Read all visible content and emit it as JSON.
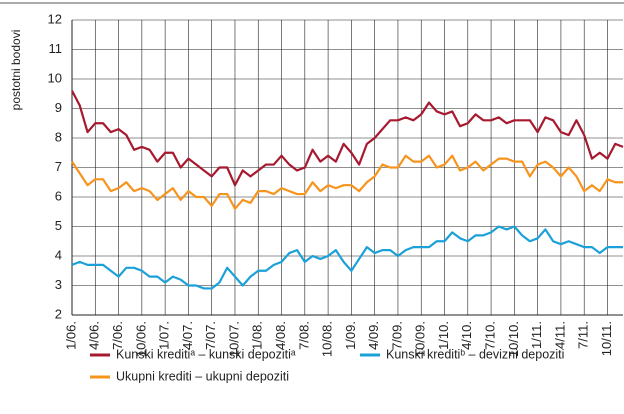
{
  "chart_data": {
    "type": "line",
    "y_axis_label": "postotni bodovi",
    "categories": [
      "1/06.",
      null,
      null,
      "4/06.",
      null,
      null,
      "7/06.",
      null,
      null,
      "10/06.",
      null,
      null,
      "1/07.",
      null,
      null,
      "4/07.",
      null,
      null,
      "7/07.",
      null,
      null,
      "10/07.",
      null,
      null,
      "1/08.",
      null,
      null,
      "4/08.",
      null,
      null,
      "7/08.",
      null,
      null,
      "10/08.",
      null,
      null,
      "1/09.",
      null,
      null,
      "4/09.",
      null,
      null,
      "7/09.",
      null,
      null,
      "10/09.",
      null,
      null,
      "1/10.",
      null,
      null,
      "4/10.",
      null,
      null,
      "7/10.",
      null,
      null,
      "10/10.",
      null,
      null,
      "1/11.",
      null,
      null,
      "4/11.",
      null,
      null,
      "7/11.",
      null,
      null,
      "10/11.",
      null,
      null
    ],
    "series": [
      {
        "name": "Kunski kreditiᵃ – kunski depozitiᵃ",
        "color": "#a6192e",
        "values": [
          9.6,
          9.1,
          8.2,
          8.5,
          8.5,
          8.2,
          8.3,
          8.1,
          7.6,
          7.7,
          7.6,
          7.2,
          7.5,
          7.5,
          7.0,
          7.3,
          7.1,
          6.9,
          6.7,
          7.0,
          7.0,
          6.4,
          6.9,
          6.7,
          6.9,
          7.1,
          7.1,
          7.4,
          7.1,
          6.9,
          7.0,
          7.6,
          7.2,
          7.4,
          7.2,
          7.8,
          7.5,
          7.1,
          7.8,
          8.0,
          8.3,
          8.6,
          8.6,
          8.7,
          8.6,
          8.8,
          9.2,
          8.9,
          8.8,
          8.9,
          8.4,
          8.5,
          8.8,
          8.6,
          8.6,
          8.7,
          8.5,
          8.6,
          8.6,
          8.6,
          8.2,
          8.7,
          8.6,
          8.2,
          8.1,
          8.6,
          8.1,
          7.3,
          7.5,
          7.3,
          7.8,
          7.7
        ]
      },
      {
        "name": "Kunski kreditiᵇ – devizni depoziti",
        "color": "#1ba1d9",
        "values": [
          3.7,
          3.8,
          3.7,
          3.7,
          3.7,
          3.5,
          3.3,
          3.6,
          3.6,
          3.5,
          3.3,
          3.3,
          3.1,
          3.3,
          3.2,
          3.0,
          3.0,
          2.9,
          2.9,
          3.1,
          3.6,
          3.3,
          3.0,
          3.3,
          3.5,
          3.5,
          3.7,
          3.8,
          4.1,
          4.2,
          3.8,
          4.0,
          3.9,
          4.0,
          4.2,
          3.8,
          3.5,
          3.9,
          4.3,
          4.1,
          4.2,
          4.2,
          4.0,
          4.2,
          4.3,
          4.3,
          4.3,
          4.5,
          4.5,
          4.8,
          4.6,
          4.5,
          4.7,
          4.7,
          4.8,
          5.0,
          4.9,
          5.0,
          4.7,
          4.5,
          4.6,
          4.9,
          4.5,
          4.4,
          4.5,
          4.4,
          4.3,
          4.3,
          4.1,
          4.3,
          4.3,
          4.3
        ]
      },
      {
        "name": "Ukupni krediti – ukupni depoziti",
        "color": "#f7941d",
        "values": [
          7.2,
          6.8,
          6.4,
          6.6,
          6.6,
          6.2,
          6.3,
          6.5,
          6.2,
          6.3,
          6.2,
          5.9,
          6.1,
          6.3,
          5.9,
          6.2,
          6.0,
          6.0,
          5.7,
          6.1,
          6.1,
          5.6,
          5.9,
          5.8,
          6.2,
          6.2,
          6.1,
          6.3,
          6.2,
          6.1,
          6.1,
          6.5,
          6.2,
          6.4,
          6.3,
          6.4,
          6.4,
          6.2,
          6.5,
          6.7,
          7.1,
          7.0,
          7.0,
          7.4,
          7.2,
          7.2,
          7.4,
          7.0,
          7.1,
          7.4,
          6.9,
          7.0,
          7.2,
          6.9,
          7.1,
          7.3,
          7.3,
          7.2,
          7.2,
          6.7,
          7.1,
          7.2,
          7.0,
          6.7,
          7.0,
          6.7,
          6.2,
          6.4,
          6.2,
          6.6,
          6.5,
          6.5
        ]
      }
    ],
    "ylim": [
      2,
      12
    ],
    "yticks": [
      2,
      3,
      4,
      5,
      6,
      7,
      8,
      9,
      10,
      11,
      12
    ],
    "grid": true
  }
}
